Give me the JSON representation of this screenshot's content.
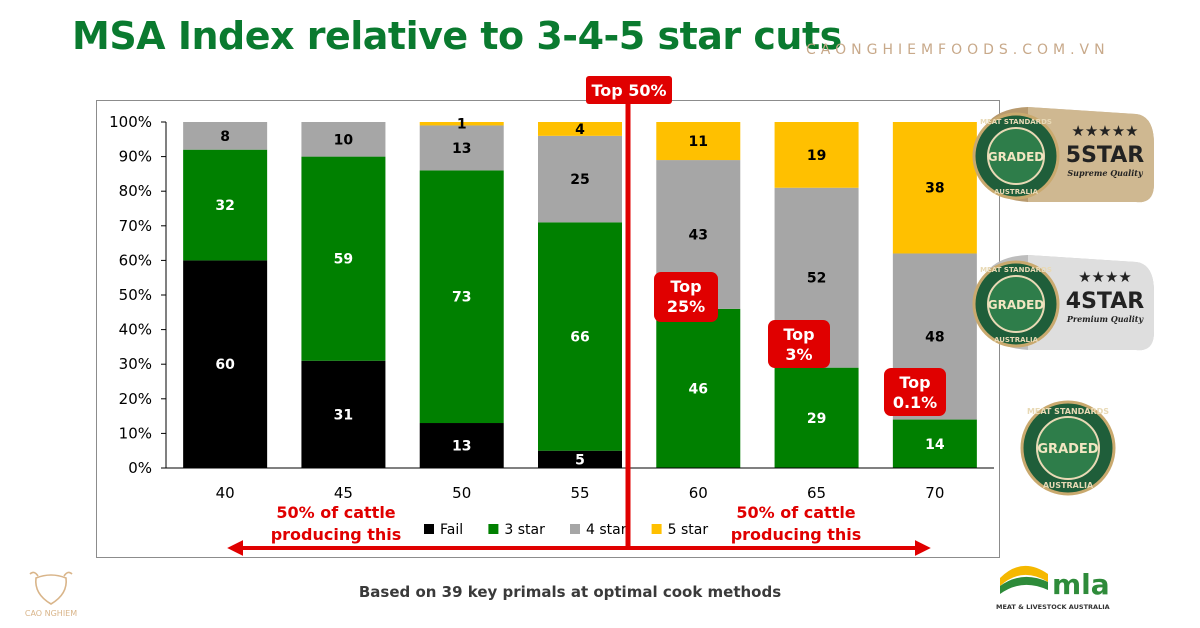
{
  "title": "MSA Index relative to 3-4-5 star cuts",
  "watermark": "CAONGHIEMFOODS.COM.VN",
  "footnote": "Based on 39 key primals at optimal cook methods",
  "colors": {
    "fail": "#000000",
    "star3": "#008000",
    "star4": "#a6a6a6",
    "star5": "#ffc000",
    "accent": "#e00000",
    "title": "#0a7a2f"
  },
  "chart_data": {
    "type": "bar",
    "stacked": true,
    "categories": [
      "40",
      "45",
      "50",
      "55",
      "60",
      "65",
      "70"
    ],
    "series": [
      {
        "name": "Fail",
        "color": "#000000",
        "label_color": "#ffffff",
        "values": [
          60,
          31,
          13,
          5,
          0,
          0,
          0
        ]
      },
      {
        "name": "3 star",
        "color": "#008000",
        "label_color": "#ffffff",
        "values": [
          32,
          59,
          73,
          66,
          46,
          29,
          14
        ]
      },
      {
        "name": "4 star",
        "color": "#a6a6a6",
        "label_color": "#000000",
        "values": [
          8,
          10,
          13,
          25,
          43,
          52,
          48
        ]
      },
      {
        "name": "5 star",
        "color": "#ffc000",
        "label_color": "#000000",
        "values": [
          0,
          0,
          1,
          4,
          11,
          19,
          38
        ]
      }
    ],
    "ylim": [
      0,
      100
    ],
    "yticks": [
      "0%",
      "10%",
      "20%",
      "30%",
      "40%",
      "50%",
      "60%",
      "70%",
      "80%",
      "90%",
      "100%"
    ],
    "legend": [
      "Fail",
      "3 star",
      "4 star",
      "5 star"
    ],
    "annotations": {
      "top50": "Top 50%",
      "callouts": [
        {
          "line1": "Top",
          "line2": "25%",
          "category": "60",
          "level": 46
        },
        {
          "line1": "Top",
          "line2": "3%",
          "category": "65",
          "level": 29
        },
        {
          "line1": "Top",
          "line2": "0.1%",
          "category": "70",
          "level": 14
        }
      ],
      "left_note": [
        "50% of cattle",
        "producing this"
      ],
      "right_note": [
        "50% of cattle",
        "producing this"
      ]
    }
  },
  "badges": [
    {
      "ring_top": "MEAT STANDARDS",
      "ring_bottom": "AUSTRALIA",
      "center": "GRADED",
      "stars": "★★★★★",
      "rating": "5STAR",
      "quality": "Supreme Quality"
    },
    {
      "ring_top": "MEAT STANDARDS",
      "ring_bottom": "AUSTRALIA",
      "center": "GRADED",
      "stars": "★★★★",
      "rating": "4STAR",
      "quality": "Premium Quality"
    },
    {
      "ring_top": "MEAT STANDARDS",
      "ring_bottom": "AUSTRALIA",
      "center": "GRADED"
    }
  ],
  "mla": {
    "logo": "mla",
    "subtitle": "MEAT & LIVESTOCK AUSTRALIA"
  },
  "brand": {
    "name": "CAO NGHIEM"
  }
}
